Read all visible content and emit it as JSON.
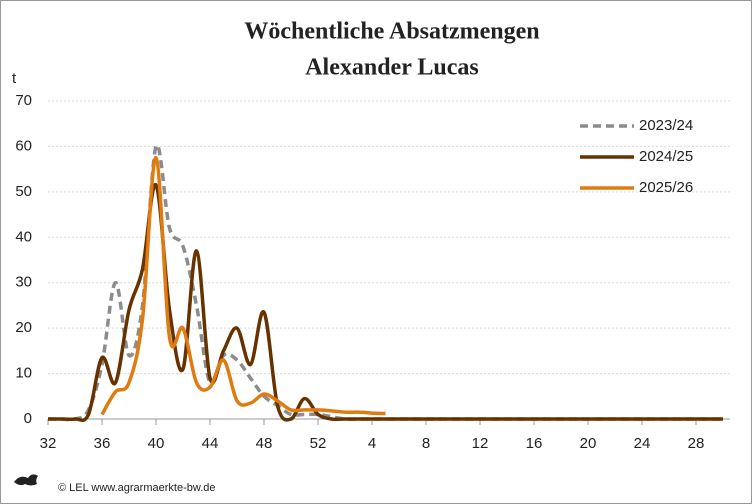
{
  "chart_data": {
    "type": "line",
    "title": "Wöchentliche Absatzmengen",
    "subtitle": "Alexander Lucas",
    "y_label": "t",
    "footer": "© LEL www.agrarmaerkte-bw.de",
    "categories": [
      "32",
      null,
      null,
      null,
      "36",
      null,
      null,
      null,
      "40",
      null,
      null,
      null,
      "44",
      null,
      null,
      null,
      "48",
      null,
      null,
      null,
      "52",
      null,
      null,
      null,
      "4",
      null,
      null,
      null,
      "8",
      null,
      null,
      null,
      "12",
      null,
      null,
      null,
      "16",
      null,
      null,
      null,
      "20",
      null,
      null,
      null,
      "24",
      null,
      null,
      null,
      "28",
      null,
      null
    ],
    "series": [
      {
        "name": "2023/24",
        "color": "#8c8c8c",
        "dashed": true,
        "values": [
          0,
          0,
          0,
          2,
          12,
          30,
          14,
          25,
          60,
          42,
          38,
          25,
          8,
          14,
          13,
          9,
          5,
          3,
          1,
          1,
          1,
          0.5,
          0,
          0,
          0,
          0,
          0,
          0,
          0,
          0,
          0,
          0,
          0,
          0,
          0,
          0,
          0,
          0,
          0,
          0,
          0,
          0,
          0,
          0,
          0,
          0,
          0,
          0,
          0,
          0,
          0
        ]
      },
      {
        "name": "2024/25",
        "color": "#663300",
        "values": [
          0,
          0,
          0,
          1,
          13.5,
          8,
          24,
          33,
          51.5,
          24,
          11,
          37,
          9,
          15,
          20,
          12,
          23.5,
          3,
          0,
          4.5,
          1,
          0,
          0,
          0,
          0,
          0,
          0,
          0,
          0,
          0,
          0,
          0,
          0,
          0,
          0,
          0,
          0,
          0,
          0,
          0,
          0,
          0,
          0,
          0,
          0,
          0,
          0,
          0,
          0,
          0,
          0
        ]
      },
      {
        "name": "2025/26",
        "color": "#e07b10",
        "values": [
          null,
          null,
          null,
          null,
          1,
          6,
          8,
          22,
          57.5,
          18,
          20,
          8,
          7,
          13,
          4,
          3.5,
          5.5,
          4,
          2,
          2,
          2,
          1.8,
          1.5,
          1.5,
          1.3,
          1.2,
          null,
          null,
          null,
          null,
          null,
          null,
          null,
          null,
          null,
          null,
          null,
          null,
          null,
          null,
          null,
          null,
          null,
          null,
          null,
          null,
          null,
          null,
          null,
          null,
          null
        ]
      }
    ],
    "ylim": [
      0,
      70
    ],
    "yticks": [
      0,
      10,
      20,
      30,
      40,
      50,
      60,
      70
    ],
    "grid": true,
    "legend": "top-right"
  }
}
